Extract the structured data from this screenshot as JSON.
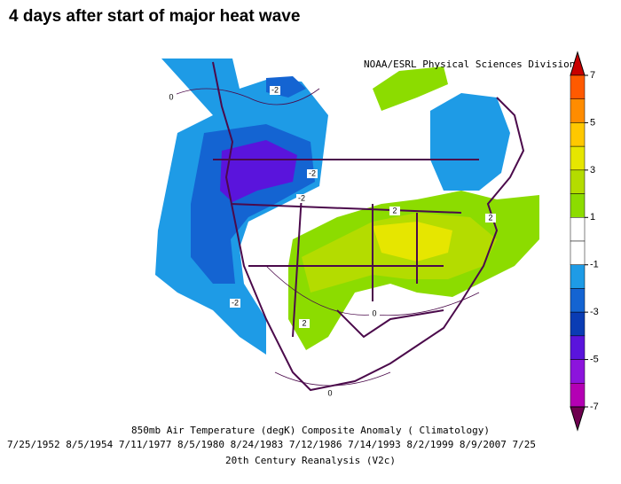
{
  "title": "4 days after start of major heat wave",
  "credit": "NOAA/ESRL Physical Sciences Division",
  "caption": {
    "line1": "850mb Air Temperature (degK) Composite Anomaly ( Climatology)",
    "line2": "7/25/1952 8/5/1954 7/11/1977 8/5/1980 8/24/1983 7/12/1986 7/14/1993 8/2/1999 8/9/2007 7/25",
    "line3": "20th Century Reanalysis (V2c)"
  },
  "colorbar": {
    "range": [
      -7,
      7
    ],
    "ticks": [
      7,
      5,
      3,
      1,
      -1,
      -3,
      -5,
      -7
    ],
    "colors": [
      "#c80000",
      "#ff5a00",
      "#ff8c00",
      "#ffc800",
      "#e6e600",
      "#b4dc00",
      "#8cdc00",
      "#ffffff",
      "#ffffff",
      "#1e9be6",
      "#1464d2",
      "#0a3cb4",
      "#5a14dc",
      "#8c14dc",
      "#b400b4",
      "#6e0050"
    ]
  },
  "contour_labels": [
    "-2",
    "-2",
    "-2",
    "-2",
    "2",
    "2",
    "2",
    "0",
    "0",
    "0"
  ]
}
